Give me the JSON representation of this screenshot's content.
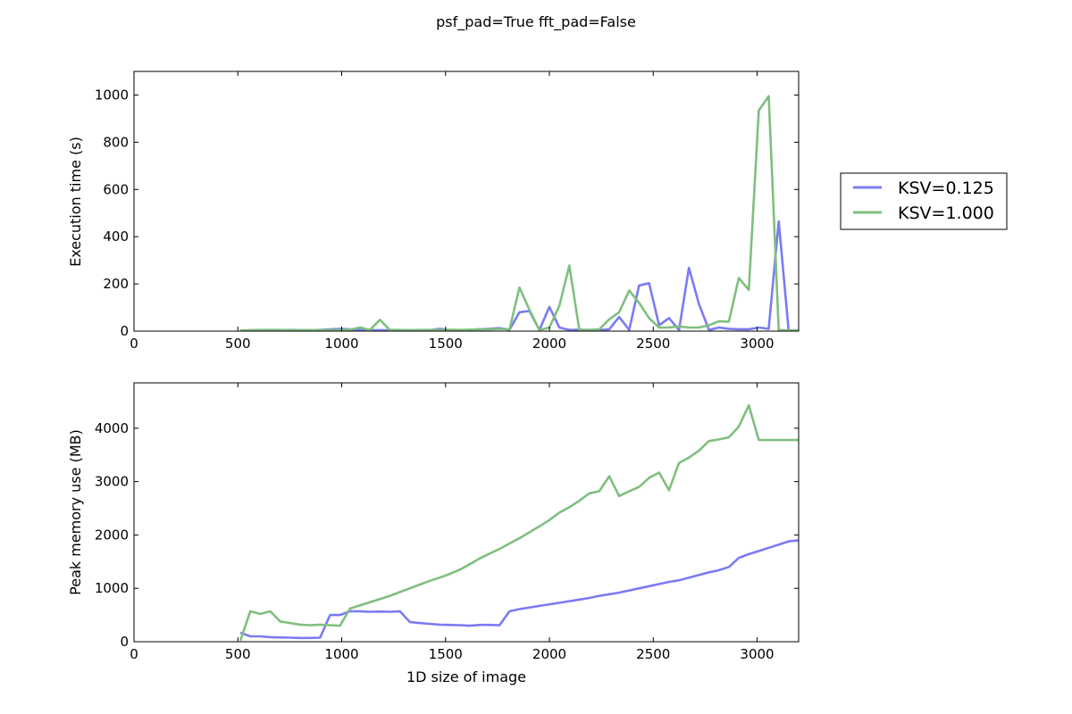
{
  "figure": {
    "suptitle": "psf_pad=True fft_pad=False"
  },
  "legend": {
    "placement": "outside-right",
    "entries": [
      {
        "label": "KSV=0.125",
        "color": "#7b7bf3"
      },
      {
        "label": "KSV=1.000",
        "color": "#7fbf7f"
      }
    ]
  },
  "chart_data": [
    {
      "type": "line",
      "title": "",
      "xlabel": "",
      "ylabel": "Execution time (s)",
      "xlim": [
        0,
        3200
      ],
      "ylim": [
        0,
        1100
      ],
      "xticks": [
        0,
        500,
        1000,
        1500,
        2000,
        2500,
        3000
      ],
      "yticks": [
        0,
        200,
        400,
        600,
        800,
        1000
      ],
      "series": [
        {
          "name": "KSV=0.125",
          "color": "#7b7bf3",
          "x": [
            512,
            560,
            608,
            656,
            704,
            752,
            800,
            848,
            896,
            944,
            992,
            1040,
            1088,
            1136,
            1184,
            1232,
            1280,
            1328,
            1376,
            1424,
            1472,
            1520,
            1568,
            1616,
            1664,
            1712,
            1760,
            1808,
            1856,
            1904,
            1952,
            2000,
            2048,
            2096,
            2144,
            2192,
            2240,
            2288,
            2336,
            2384,
            2432,
            2480,
            2528,
            2576,
            2624,
            2672,
            2720,
            2768,
            2816,
            2864,
            2912,
            2960,
            3008,
            3056,
            3104,
            3152,
            3200
          ],
          "y": [
            2,
            2,
            3,
            3,
            4,
            5,
            4,
            3,
            5,
            7,
            10,
            7,
            5,
            4,
            4,
            3,
            4,
            3,
            3,
            4,
            10,
            4,
            4,
            4,
            8,
            10,
            13,
            6,
            80,
            85,
            5,
            103,
            15,
            5,
            6,
            5,
            4,
            8,
            60,
            5,
            193,
            203,
            25,
            55,
            5,
            268,
            115,
            5,
            15,
            10,
            8,
            8,
            15,
            10,
            465,
            3,
            3
          ]
        },
        {
          "name": "KSV=1.000",
          "color": "#7fbf7f",
          "x": [
            512,
            560,
            608,
            656,
            704,
            752,
            800,
            848,
            896,
            944,
            992,
            1040,
            1088,
            1136,
            1184,
            1232,
            1280,
            1328,
            1376,
            1424,
            1472,
            1520,
            1568,
            1616,
            1664,
            1712,
            1760,
            1808,
            1856,
            1904,
            1952,
            2000,
            2048,
            2096,
            2144,
            2192,
            2240,
            2288,
            2336,
            2384,
            2432,
            2480,
            2528,
            2576,
            2624,
            2672,
            2720,
            2768,
            2816,
            2864,
            2912,
            2960,
            3008,
            3056,
            3104,
            3152,
            3200
          ],
          "y": [
            3,
            4,
            5,
            5,
            5,
            4,
            4,
            4,
            4,
            4,
            5,
            6,
            15,
            5,
            48,
            5,
            5,
            4,
            5,
            5,
            5,
            6,
            5,
            6,
            8,
            7,
            10,
            8,
            185,
            90,
            5,
            15,
            108,
            278,
            5,
            5,
            8,
            50,
            80,
            172,
            120,
            55,
            15,
            15,
            20,
            15,
            15,
            25,
            42,
            40,
            225,
            175,
            935,
            995,
            5,
            3,
            3
          ]
        }
      ]
    },
    {
      "type": "line",
      "title": "",
      "xlabel": "1D size of image",
      "ylabel": "Peak memory use (MB)",
      "xlim": [
        0,
        3200
      ],
      "ylim": [
        0,
        4850
      ],
      "xticks": [
        0,
        500,
        1000,
        1500,
        2000,
        2500,
        3000
      ],
      "yticks": [
        0,
        1000,
        2000,
        3000,
        4000
      ],
      "series": [
        {
          "name": "KSV=0.125",
          "color": "#7b7bf3",
          "x": [
            512,
            560,
            608,
            656,
            704,
            752,
            800,
            848,
            896,
            944,
            992,
            1040,
            1088,
            1136,
            1184,
            1232,
            1280,
            1328,
            1376,
            1424,
            1472,
            1520,
            1568,
            1616,
            1664,
            1712,
            1760,
            1808,
            1856,
            1904,
            1952,
            2000,
            2048,
            2096,
            2144,
            2192,
            2240,
            2288,
            2336,
            2384,
            2432,
            2480,
            2528,
            2576,
            2624,
            2672,
            2720,
            2768,
            2816,
            2864,
            2912,
            2960,
            3008,
            3056,
            3104,
            3152,
            3200
          ],
          "y": [
            170,
            100,
            100,
            85,
            80,
            75,
            70,
            70,
            75,
            500,
            500,
            570,
            570,
            560,
            565,
            560,
            570,
            370,
            350,
            335,
            320,
            315,
            310,
            300,
            315,
            315,
            310,
            570,
            610,
            640,
            670,
            700,
            730,
            760,
            790,
            820,
            860,
            890,
            920,
            960,
            1000,
            1040,
            1080,
            1120,
            1150,
            1200,
            1250,
            1300,
            1340,
            1400,
            1570,
            1640,
            1700,
            1760,
            1820,
            1880,
            1900
          ]
        },
        {
          "name": "KSV=1.000",
          "color": "#7fbf7f",
          "x": [
            512,
            560,
            608,
            656,
            704,
            752,
            800,
            848,
            896,
            944,
            992,
            1040,
            1088,
            1136,
            1184,
            1232,
            1280,
            1328,
            1376,
            1424,
            1472,
            1520,
            1568,
            1616,
            1664,
            1712,
            1760,
            1808,
            1856,
            1904,
            1952,
            2000,
            2048,
            2096,
            2144,
            2192,
            2240,
            2288,
            2336,
            2384,
            2432,
            2480,
            2528,
            2576,
            2624,
            2672,
            2720,
            2768,
            2816,
            2864,
            2912,
            2960,
            3008,
            3056,
            3104,
            3152,
            3200
          ],
          "y": [
            20,
            570,
            520,
            570,
            380,
            350,
            320,
            310,
            320,
            310,
            300,
            620,
            680,
            740,
            800,
            860,
            930,
            1000,
            1070,
            1140,
            1200,
            1270,
            1350,
            1450,
            1560,
            1650,
            1740,
            1840,
            1940,
            2050,
            2160,
            2280,
            2420,
            2520,
            2640,
            2780,
            2820,
            3100,
            2730,
            2820,
            2900,
            3070,
            3170,
            2840,
            3350,
            3450,
            3580,
            3760,
            3790,
            3830,
            4030,
            4430,
            3780,
            3780,
            3780,
            3780,
            3780
          ]
        }
      ]
    }
  ]
}
